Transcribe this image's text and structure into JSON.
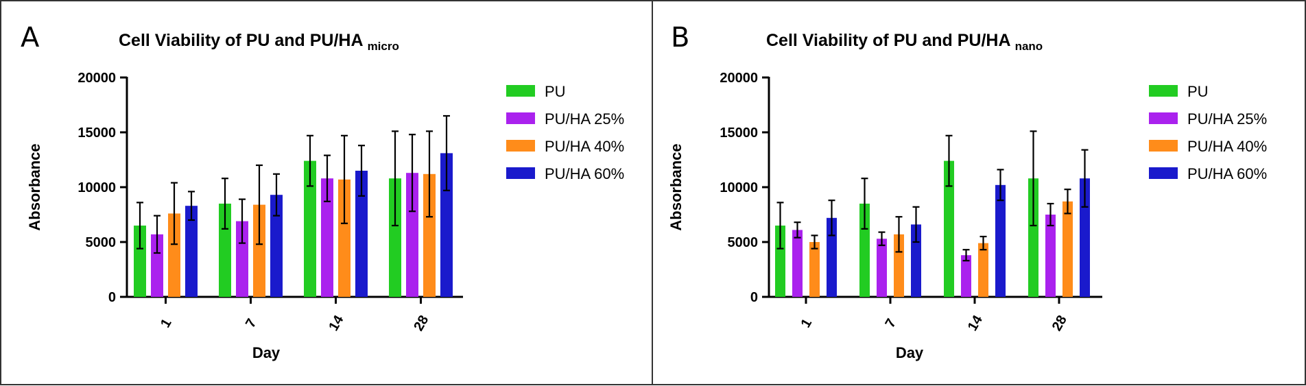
{
  "chart_data": [
    {
      "panel_letter": "A",
      "type": "bar",
      "title": "Cell Viability of PU and PU/HA",
      "title_subscript": "micro",
      "xlabel": "Day",
      "ylabel": "Absorbance",
      "ylim": [
        0,
        20000
      ],
      "yticks": [
        "0",
        "5000",
        "10000",
        "15000",
        "20000"
      ],
      "categories": [
        "1",
        "7",
        "14",
        "28"
      ],
      "series": [
        {
          "name": "PU",
          "color": "#22cc22",
          "values": [
            6500,
            8500,
            12400,
            10800
          ],
          "errors": [
            2100,
            2300,
            2300,
            4300
          ]
        },
        {
          "name": "PU/HA 25%",
          "color": "#aa22ee",
          "values": [
            5700,
            6900,
            10800,
            11300
          ],
          "errors": [
            1700,
            2000,
            2100,
            3500
          ]
        },
        {
          "name": "PU/HA 40%",
          "color": "#ff8c1a",
          "values": [
            7600,
            8400,
            10700,
            11200
          ],
          "errors": [
            2800,
            3600,
            4000,
            3900
          ]
        },
        {
          "name": "PU/HA 60%",
          "color": "#1a1acc",
          "values": [
            8300,
            9300,
            11500,
            13100
          ],
          "errors": [
            1300,
            1900,
            2300,
            3400
          ]
        }
      ]
    },
    {
      "panel_letter": "B",
      "type": "bar",
      "title": "Cell Viability of PU and PU/HA",
      "title_subscript": "nano",
      "xlabel": "Day",
      "ylabel": "Absorbance",
      "ylim": [
        0,
        20000
      ],
      "yticks": [
        "0",
        "5000",
        "10000",
        "15000",
        "20000"
      ],
      "categories": [
        "1",
        "7",
        "14",
        "28"
      ],
      "series": [
        {
          "name": "PU",
          "color": "#22cc22",
          "values": [
            6500,
            8500,
            12400,
            10800
          ],
          "errors": [
            2100,
            2300,
            2300,
            4300
          ]
        },
        {
          "name": "PU/HA 25%",
          "color": "#aa22ee",
          "values": [
            6100,
            5300,
            3800,
            7500
          ],
          "errors": [
            700,
            600,
            500,
            1000
          ]
        },
        {
          "name": "PU/HA 40%",
          "color": "#ff8c1a",
          "values": [
            5000,
            5700,
            4900,
            8700
          ],
          "errors": [
            600,
            1600,
            600,
            1100
          ]
        },
        {
          "name": "PU/HA 60%",
          "color": "#1a1acc",
          "values": [
            7200,
            6600,
            10200,
            10800
          ],
          "errors": [
            1600,
            1600,
            1400,
            2600
          ]
        }
      ]
    }
  ]
}
